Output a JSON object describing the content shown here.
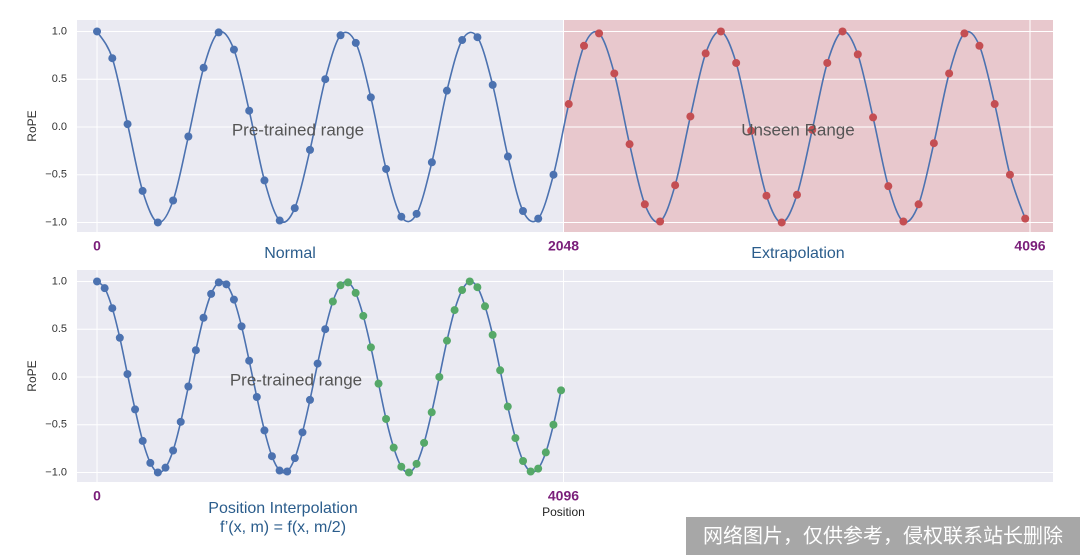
{
  "chart_data": [
    {
      "type": "line",
      "ylabel": "RoPE",
      "xlim": [
        -88,
        4197
      ],
      "ylim": [
        -1.1,
        1.12
      ],
      "xticks": [
        0,
        2048,
        4096
      ],
      "yticks": [
        {
          "value": -1,
          "label": "−1.0"
        },
        {
          "value": -0.5,
          "label": "−0.5"
        },
        {
          "value": 0,
          "label": "0.0"
        },
        {
          "value": 0.5,
          "label": "0.5"
        },
        {
          "value": 1,
          "label": "1.0"
        }
      ],
      "grid": true,
      "line_color": "#4c72b0",
      "shaded_region": {
        "xmin": 2048,
        "color": "#e8c8cd"
      },
      "annotations": [
        "Pre-trained range",
        "Unseen Range"
      ],
      "region_labels": [
        "Normal",
        "Extrapolation"
      ],
      "series": [
        {
          "color": "#4c72b0",
          "x": [
            0,
            67,
            134,
            200,
            267,
            334,
            401,
            468,
            534,
            601,
            668,
            735,
            802,
            868,
            935,
            1002,
            1069,
            1136,
            1202,
            1269,
            1336,
            1403,
            1470,
            1536,
            1603,
            1670,
            1737,
            1804,
            1870,
            1937,
            2004
          ],
          "values": [
            1.0,
            0.72,
            0.03,
            -0.67,
            -1.0,
            -0.77,
            -0.1,
            0.62,
            0.99,
            0.81,
            0.17,
            -0.56,
            -0.98,
            -0.85,
            -0.24,
            0.5,
            0.96,
            0.88,
            0.31,
            -0.44,
            -0.94,
            -0.91,
            -0.37,
            0.38,
            0.91,
            0.94,
            0.44,
            -0.31,
            -0.88,
            -0.96,
            -0.5
          ]
        },
        {
          "color": "#c44e52",
          "x": [
            2071,
            2138,
            2204,
            2271,
            2338,
            2405,
            2472,
            2538,
            2605,
            2672,
            2739,
            2806,
            2872,
            2939,
            3006,
            3073,
            3140,
            3206,
            3273,
            3340,
            3407,
            3474,
            3540,
            3607,
            3674,
            3741,
            3808,
            3874,
            3941,
            4008,
            4075
          ],
          "values": [
            0.24,
            0.85,
            0.98,
            0.56,
            -0.18,
            -0.81,
            -0.99,
            -0.61,
            0.11,
            0.77,
            1.0,
            0.67,
            -0.04,
            -0.72,
            -1.0,
            -0.71,
            -0.03,
            0.67,
            1.0,
            0.76,
            0.1,
            -0.62,
            -0.99,
            -0.81,
            -0.17,
            0.56,
            0.98,
            0.85,
            0.24,
            -0.5,
            -0.96
          ]
        }
      ]
    },
    {
      "type": "line",
      "ylabel": "RoPE",
      "xlabel": "Position",
      "xlim": [
        -176,
        8395
      ],
      "ylim": [
        -1.1,
        1.12
      ],
      "xticks": [
        0,
        4096
      ],
      "yticks": [
        {
          "value": -1,
          "label": "−1.0"
        },
        {
          "value": -0.5,
          "label": "−0.5"
        },
        {
          "value": 0,
          "label": "0.0"
        },
        {
          "value": 0.5,
          "label": "0.5"
        },
        {
          "value": 1,
          "label": "1.0"
        }
      ],
      "grid": true,
      "line_color": "#4c72b0",
      "annotations": [
        "Pre-trained range"
      ],
      "region_labels": [
        "Position Interpolation",
        "f’(x, m) = f(x, m/2)"
      ],
      "series": [
        {
          "color": "#4c72b0",
          "x": [
            0,
            67,
            134,
            200,
            267,
            334,
            401,
            468,
            534,
            601,
            668,
            735,
            802,
            868,
            935,
            1002,
            1069,
            1136,
            1202,
            1269,
            1336,
            1403,
            1470,
            1536,
            1603,
            1670,
            1737,
            1804,
            1870,
            1937,
            2004
          ],
          "values": [
            1.0,
            0.93,
            0.72,
            0.41,
            0.03,
            -0.34,
            -0.67,
            -0.9,
            -1.0,
            -0.95,
            -0.77,
            -0.47,
            -0.1,
            0.28,
            0.62,
            0.87,
            0.99,
            0.97,
            0.81,
            0.53,
            0.17,
            -0.21,
            -0.56,
            -0.83,
            -0.98,
            -0.99,
            -0.85,
            -0.58,
            -0.24,
            0.14,
            0.5
          ]
        },
        {
          "color": "#55a868",
          "x": [
            2071,
            2138,
            2204,
            2271,
            2338,
            2405,
            2472,
            2538,
            2605,
            2672,
            2739,
            2806,
            2872,
            2939,
            3006,
            3073,
            3140,
            3206,
            3273,
            3340,
            3407,
            3474,
            3540,
            3607,
            3674,
            3741,
            3808,
            3874,
            3941,
            4008,
            4075
          ],
          "values": [
            0.79,
            0.96,
            0.99,
            0.88,
            0.64,
            0.31,
            -0.07,
            -0.44,
            -0.74,
            -0.94,
            -1.0,
            -0.91,
            -0.69,
            -0.37,
            0.0,
            0.38,
            0.7,
            0.91,
            1.0,
            0.94,
            0.74,
            0.44,
            0.07,
            -0.31,
            -0.64,
            -0.88,
            -0.99,
            -0.96,
            -0.79,
            -0.5,
            -0.14
          ]
        }
      ]
    }
  ],
  "watermark": "网络图片，仅供参考，侵权联系站长删除"
}
